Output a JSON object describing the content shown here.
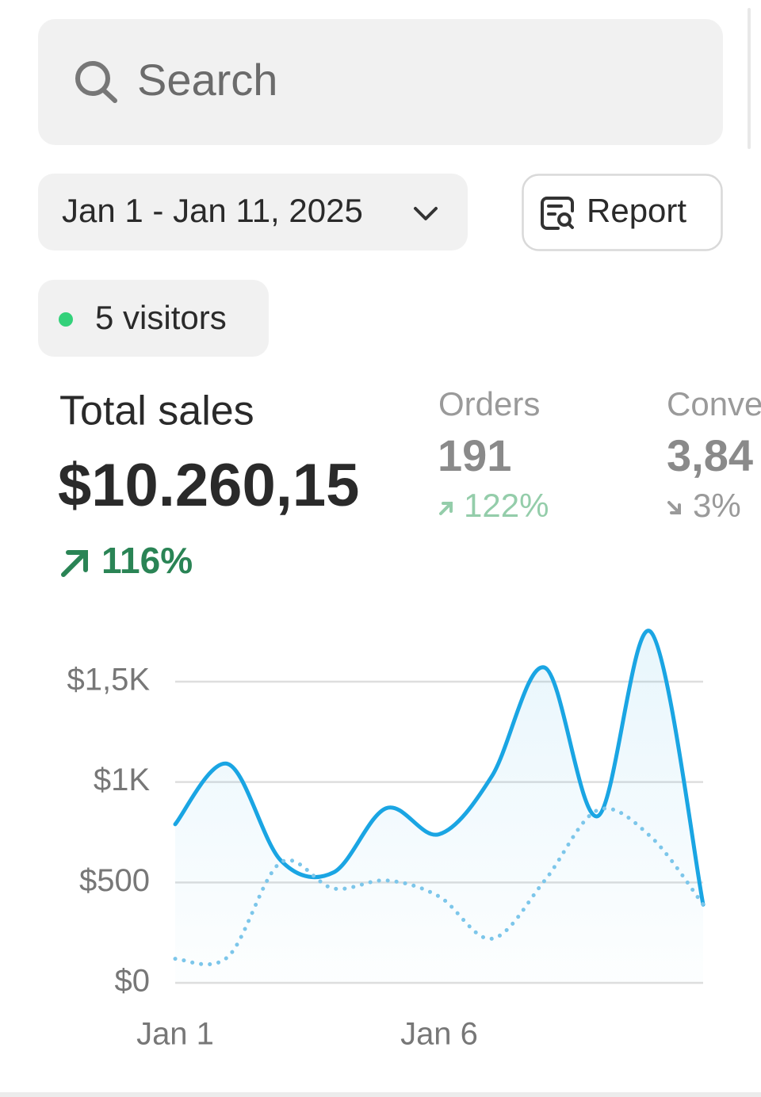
{
  "search": {
    "placeholder": "Search"
  },
  "date_range": {
    "label": "Jan 1 - Jan 11, 2025"
  },
  "report_button": {
    "label": "Report"
  },
  "visitors": {
    "label": "5 visitors"
  },
  "metrics": [
    {
      "label": "Total sales",
      "value": "$10.260,15",
      "change": "116%"
    },
    {
      "label": "Orders",
      "value": "191",
      "change": "122%"
    },
    {
      "label": "Conve",
      "value": "3,84",
      "change": "3%"
    }
  ],
  "chart_data": {
    "type": "line",
    "categories": [
      "Jan 1",
      null,
      null,
      null,
      null,
      "Jan 6",
      null,
      null,
      null,
      null,
      null
    ],
    "series": [
      {
        "color": "#1aa5e3",
        "style": "solid",
        "fill": true,
        "values": [
          790,
          1090,
          610,
          550,
          870,
          740,
          1030,
          1570,
          830,
          1750,
          390
        ]
      },
      {
        "color": "#7cc6ea",
        "style": "dotted",
        "fill": false,
        "values": [
          120,
          130,
          600,
          470,
          510,
          430,
          220,
          510,
          860,
          730,
          390
        ]
      }
    ],
    "ylim": [
      0,
      1500
    ],
    "yticks": [
      {
        "value": 0,
        "label": "$0"
      },
      {
        "value": 500,
        "label": "$500"
      },
      {
        "value": 1000,
        "label": "$1K"
      },
      {
        "value": 1500,
        "label": "$1,5K"
      }
    ],
    "grid": true
  }
}
